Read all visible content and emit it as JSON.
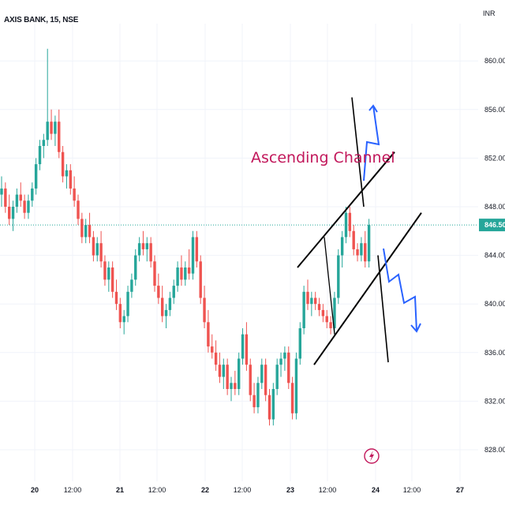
{
  "symbol": "AXIS BANK, 15, NSE",
  "currency": "INR",
  "colors": {
    "up": "#26a69a",
    "down": "#ef5350",
    "channel": "#000000",
    "projection": "#2962ff",
    "annotation": "#c2185b",
    "last_price_line": "#26a69a"
  },
  "chart_data": {
    "type": "candlestick",
    "yrange": [
      827,
      862
    ],
    "y_ticks": [
      "828.00",
      "832.00",
      "836.00",
      "840.00",
      "844.00",
      "848.00",
      "852.00",
      "856.00",
      "860.00"
    ],
    "x_ticks": [
      "20",
      "12:00",
      "21",
      "12:00",
      "22",
      "12:00",
      "23",
      "12:00",
      "24",
      "12:00",
      "27"
    ],
    "last_price": "846.50",
    "annotation": "Ascending Channel",
    "candles": [
      [
        849.0,
        850.5,
        848.0,
        849.5
      ],
      [
        849.5,
        850.0,
        847.5,
        848.0
      ],
      [
        848.0,
        849.0,
        846.5,
        847.0
      ],
      [
        847.0,
        848.5,
        846.0,
        848.0
      ],
      [
        848.0,
        849.5,
        847.5,
        849.0
      ],
      [
        849.0,
        850.0,
        848.0,
        848.5
      ],
      [
        848.5,
        849.0,
        847.0,
        847.5
      ],
      [
        847.5,
        849.0,
        847.0,
        848.5
      ],
      [
        848.5,
        850.0,
        848.0,
        849.5
      ],
      [
        849.5,
        852.0,
        849.0,
        851.5
      ],
      [
        851.5,
        853.5,
        851.0,
        853.0
      ],
      [
        853.0,
        854.0,
        852.0,
        853.5
      ],
      [
        853.5,
        861.0,
        853.0,
        855.0
      ],
      [
        855.0,
        856.0,
        853.5,
        854.0
      ],
      [
        854.0,
        855.5,
        853.0,
        855.0
      ],
      [
        855.0,
        856.0,
        852.0,
        852.5
      ],
      [
        852.5,
        853.0,
        850.0,
        850.5
      ],
      [
        850.5,
        851.5,
        849.5,
        851.0
      ],
      [
        851.0,
        851.5,
        849.0,
        849.5
      ],
      [
        849.5,
        850.5,
        848.0,
        848.5
      ],
      [
        848.5,
        849.0,
        846.5,
        847.0
      ],
      [
        847.0,
        847.5,
        845.0,
        845.5
      ],
      [
        845.5,
        847.0,
        845.0,
        846.5
      ],
      [
        846.5,
        847.5,
        845.0,
        845.5
      ],
      [
        845.5,
        846.0,
        843.5,
        844.0
      ],
      [
        844.0,
        845.5,
        843.5,
        845.0
      ],
      [
        845.0,
        846.0,
        843.0,
        843.5
      ],
      [
        843.5,
        844.0,
        841.5,
        842.0
      ],
      [
        842.0,
        843.5,
        841.0,
        843.0
      ],
      [
        843.0,
        843.5,
        840.5,
        841.0
      ],
      [
        841.0,
        842.0,
        839.5,
        840.0
      ],
      [
        840.0,
        840.5,
        838.0,
        838.5
      ],
      [
        838.5,
        839.5,
        837.5,
        839.0
      ],
      [
        839.0,
        841.5,
        838.5,
        841.0
      ],
      [
        841.0,
        842.5,
        840.5,
        842.0
      ],
      [
        842.0,
        844.5,
        841.5,
        844.0
      ],
      [
        844.0,
        845.5,
        843.5,
        845.0
      ],
      [
        845.0,
        846.0,
        844.0,
        844.5
      ],
      [
        844.5,
        845.5,
        843.5,
        845.0
      ],
      [
        845.0,
        845.5,
        843.0,
        843.5
      ],
      [
        843.5,
        844.0,
        841.0,
        841.5
      ],
      [
        841.5,
        842.5,
        840.0,
        840.5
      ],
      [
        840.5,
        841.5,
        838.5,
        839.0
      ],
      [
        839.0,
        840.0,
        838.0,
        839.5
      ],
      [
        839.5,
        841.0,
        839.0,
        840.5
      ],
      [
        840.5,
        842.0,
        840.0,
        841.5
      ],
      [
        841.5,
        843.5,
        841.0,
        843.0
      ],
      [
        843.0,
        844.0,
        841.5,
        842.0
      ],
      [
        842.0,
        843.5,
        841.5,
        843.0
      ],
      [
        843.0,
        844.5,
        842.0,
        842.5
      ],
      [
        842.5,
        846.0,
        842.0,
        845.5
      ],
      [
        845.5,
        846.0,
        843.0,
        843.5
      ],
      [
        843.5,
        844.0,
        840.0,
        840.5
      ],
      [
        840.5,
        841.5,
        838.0,
        838.5
      ],
      [
        838.5,
        839.5,
        836.0,
        836.5
      ],
      [
        836.5,
        837.5,
        835.5,
        836.0
      ],
      [
        836.0,
        837.0,
        834.5,
        835.0
      ],
      [
        835.0,
        836.0,
        833.5,
        834.0
      ],
      [
        834.0,
        835.5,
        833.0,
        835.0
      ],
      [
        835.0,
        835.5,
        832.5,
        833.0
      ],
      [
        833.0,
        834.0,
        832.0,
        833.5
      ],
      [
        833.5,
        834.5,
        832.5,
        833.0
      ],
      [
        833.0,
        836.0,
        832.5,
        835.5
      ],
      [
        835.5,
        838.0,
        835.0,
        837.5
      ],
      [
        837.5,
        838.5,
        834.5,
        835.0
      ],
      [
        835.0,
        835.5,
        832.0,
        832.5
      ],
      [
        832.5,
        833.5,
        831.0,
        831.5
      ],
      [
        831.5,
        834.0,
        831.0,
        833.5
      ],
      [
        833.5,
        835.5,
        833.0,
        835.0
      ],
      [
        835.0,
        835.5,
        832.0,
        832.5
      ],
      [
        832.5,
        833.0,
        830.0,
        830.5
      ],
      [
        830.5,
        833.5,
        830.0,
        833.0
      ],
      [
        833.0,
        835.5,
        832.5,
        835.0
      ],
      [
        835.0,
        836.0,
        834.0,
        835.5
      ],
      [
        835.5,
        836.5,
        834.5,
        836.0
      ],
      [
        836.0,
        836.5,
        833.0,
        833.5
      ],
      [
        833.5,
        834.0,
        830.5,
        831.0
      ],
      [
        831.0,
        836.0,
        830.5,
        835.5
      ],
      [
        835.5,
        838.5,
        835.0,
        838.0
      ],
      [
        838.0,
        841.5,
        837.5,
        841.0
      ],
      [
        841.0,
        842.0,
        839.5,
        840.0
      ],
      [
        840.0,
        841.0,
        839.0,
        840.5
      ],
      [
        840.5,
        841.0,
        839.5,
        840.0
      ],
      [
        840.0,
        840.5,
        839.0,
        839.5
      ],
      [
        839.5,
        840.0,
        838.5,
        839.0
      ],
      [
        839.0,
        839.5,
        838.0,
        838.5
      ],
      [
        838.5,
        839.0,
        837.5,
        838.0
      ],
      [
        838.0,
        841.0,
        837.5,
        840.5
      ],
      [
        840.5,
        844.5,
        840.0,
        844.0
      ],
      [
        844.0,
        846.0,
        843.0,
        845.5
      ],
      [
        845.5,
        848.0,
        845.0,
        847.5
      ],
      [
        847.5,
        848.0,
        845.5,
        846.0
      ],
      [
        846.0,
        846.5,
        844.0,
        844.5
      ],
      [
        844.5,
        845.0,
        843.5,
        844.0
      ],
      [
        844.0,
        845.5,
        843.5,
        845.0
      ],
      [
        845.0,
        846.0,
        843.0,
        843.5
      ],
      [
        843.5,
        847.0,
        843.0,
        846.5
      ]
    ],
    "channel_lines": [
      {
        "x": [
          "23 00:15",
          "24 03:00"
        ],
        "y": [
          843.0,
          852.5
        ]
      },
      {
        "x": [
          "23 03:00",
          "24 06:00"
        ],
        "y": [
          835.0,
          847.5
        ]
      }
    ],
    "projections": {
      "up": [
        [
          852.0,
          856.5
        ],
        [
          851.5,
          856.0
        ],
        [
          853.0,
          852.5
        ],
        [
          856.5,
          856.0
        ],
        [
          855.0,
          856.0
        ]
      ],
      "down": [
        [
          845.0,
          840.0
        ],
        [
          841.0,
          837.5
        ],
        [
          837.0,
          837.5
        ],
        [
          843.5,
          837.0
        ],
        [
          836.0,
          837.0
        ]
      ]
    }
  }
}
